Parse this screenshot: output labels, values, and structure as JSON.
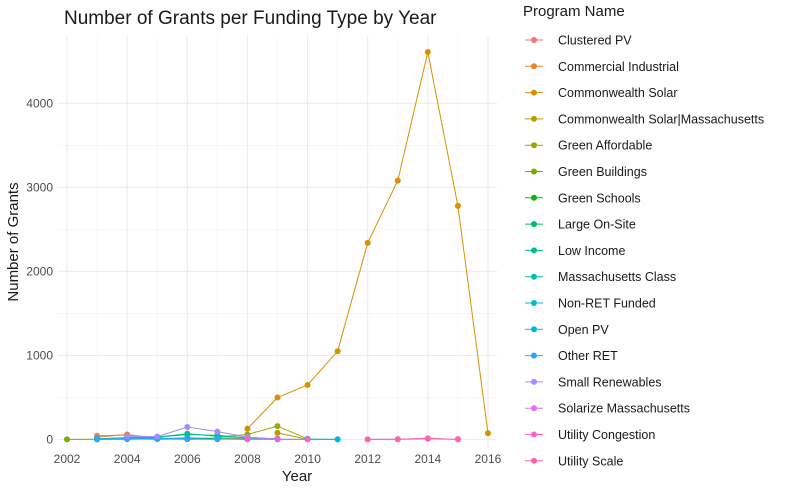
{
  "chart_data": {
    "type": "line",
    "title": "Number of Grants per Funding Type by Year",
    "xlabel": "Year",
    "ylabel": "Number of Grants",
    "xlim": [
      2001.7,
      2016.3
    ],
    "ylim": [
      -100,
      4800
    ],
    "x_ticks": [
      2002,
      2004,
      2006,
      2008,
      2010,
      2012,
      2014,
      2016
    ],
    "y_ticks": [
      0,
      1000,
      2000,
      3000,
      4000
    ],
    "grid": true,
    "legend": {
      "title": "Program Name",
      "position": "right"
    },
    "series": [
      {
        "name": "Clustered PV",
        "color": "#F8766D",
        "points": [
          [
            2003,
            45
          ],
          [
            2004,
            55
          ],
          [
            2005,
            20
          ],
          [
            2006,
            5
          ],
          [
            2007,
            15
          ],
          [
            2008,
            10
          ]
        ]
      },
      {
        "name": "Commercial Industrial",
        "color": "#E9842C",
        "points": [
          [
            2003,
            30
          ],
          [
            2004,
            60
          ],
          [
            2005,
            15
          ],
          [
            2006,
            10
          ],
          [
            2007,
            20
          ],
          [
            2008,
            5
          ]
        ]
      },
      {
        "name": "Commonwealth Solar",
        "color": "#D69100",
        "points": [
          [
            2008,
            130
          ],
          [
            2009,
            500
          ],
          [
            2010,
            650
          ],
          [
            2011,
            1050
          ],
          [
            2012,
            2340
          ],
          [
            2013,
            3080
          ],
          [
            2014,
            4610
          ],
          [
            2015,
            2780
          ],
          [
            2016,
            75
          ]
        ]
      },
      {
        "name": "Commonwealth Solar|Massachusetts",
        "color": "#BC9D00",
        "points": [
          [
            2009,
            80
          ],
          [
            2010,
            5
          ]
        ]
      },
      {
        "name": "Green Affordable",
        "color": "#9CA700",
        "points": [
          [
            2007,
            30
          ],
          [
            2008,
            60
          ],
          [
            2009,
            160
          ],
          [
            2010,
            10
          ]
        ]
      },
      {
        "name": "Green Buildings",
        "color": "#6FB000",
        "points": [
          [
            2002,
            2
          ],
          [
            2003,
            5
          ],
          [
            2004,
            10
          ],
          [
            2005,
            5
          ],
          [
            2006,
            8
          ],
          [
            2007,
            5
          ]
        ]
      },
      {
        "name": "Green Schools",
        "color": "#00B813",
        "points": [
          [
            2003,
            5
          ],
          [
            2004,
            15
          ],
          [
            2005,
            10
          ],
          [
            2006,
            20
          ],
          [
            2007,
            10
          ],
          [
            2008,
            5
          ]
        ]
      },
      {
        "name": "Large On-Site",
        "color": "#00BD61",
        "points": [
          [
            2003,
            10
          ],
          [
            2004,
            20
          ],
          [
            2005,
            30
          ],
          [
            2006,
            60
          ],
          [
            2007,
            50
          ],
          [
            2008,
            20
          ],
          [
            2009,
            10
          ]
        ]
      },
      {
        "name": "Low Income",
        "color": "#00C08E",
        "points": [
          [
            2003,
            5
          ],
          [
            2004,
            25
          ],
          [
            2005,
            30
          ],
          [
            2006,
            70
          ],
          [
            2007,
            40
          ],
          [
            2008,
            20
          ],
          [
            2009,
            10
          ]
        ]
      },
      {
        "name": "Massachusetts Class",
        "color": "#00C0B4",
        "points": [
          [
            2003,
            10
          ],
          [
            2004,
            20
          ],
          [
            2005,
            15
          ],
          [
            2006,
            10
          ],
          [
            2007,
            5
          ]
        ]
      },
      {
        "name": "Non-RET Funded",
        "color": "#00BDD4",
        "points": [
          [
            2003,
            2
          ],
          [
            2004,
            5
          ],
          [
            2005,
            10
          ],
          [
            2006,
            5
          ],
          [
            2007,
            8
          ],
          [
            2008,
            5
          ],
          [
            2009,
            2
          ],
          [
            2010,
            5
          ],
          [
            2011,
            2
          ]
        ]
      },
      {
        "name": "Open PV",
        "color": "#00B5EE",
        "points": [
          [
            2010,
            5
          ],
          [
            2011,
            2
          ]
        ]
      },
      {
        "name": "Other RET",
        "color": "#2BA7FF",
        "points": [
          [
            2003,
            5
          ],
          [
            2004,
            10
          ],
          [
            2005,
            8
          ],
          [
            2006,
            12
          ],
          [
            2007,
            6
          ]
        ]
      },
      {
        "name": "Small Renewables",
        "color": "#A58AFF",
        "points": [
          [
            2004,
            40
          ],
          [
            2005,
            35
          ],
          [
            2006,
            150
          ],
          [
            2007,
            95
          ],
          [
            2008,
            30
          ],
          [
            2009,
            5
          ]
        ]
      },
      {
        "name": "Solarize Massachusetts",
        "color": "#DF70F8",
        "points": [
          [
            2012,
            2
          ],
          [
            2013,
            5
          ],
          [
            2014,
            15
          ],
          [
            2015,
            2
          ]
        ]
      },
      {
        "name": "Utility Congestion",
        "color": "#FB61D7",
        "points": [
          [
            2008,
            5
          ],
          [
            2009,
            5
          ],
          [
            2010,
            2
          ]
        ]
      },
      {
        "name": "Utility Scale",
        "color": "#FF66A8",
        "points": [
          [
            2012,
            2
          ],
          [
            2013,
            2
          ],
          [
            2014,
            10
          ],
          [
            2015,
            5
          ]
        ]
      }
    ]
  }
}
